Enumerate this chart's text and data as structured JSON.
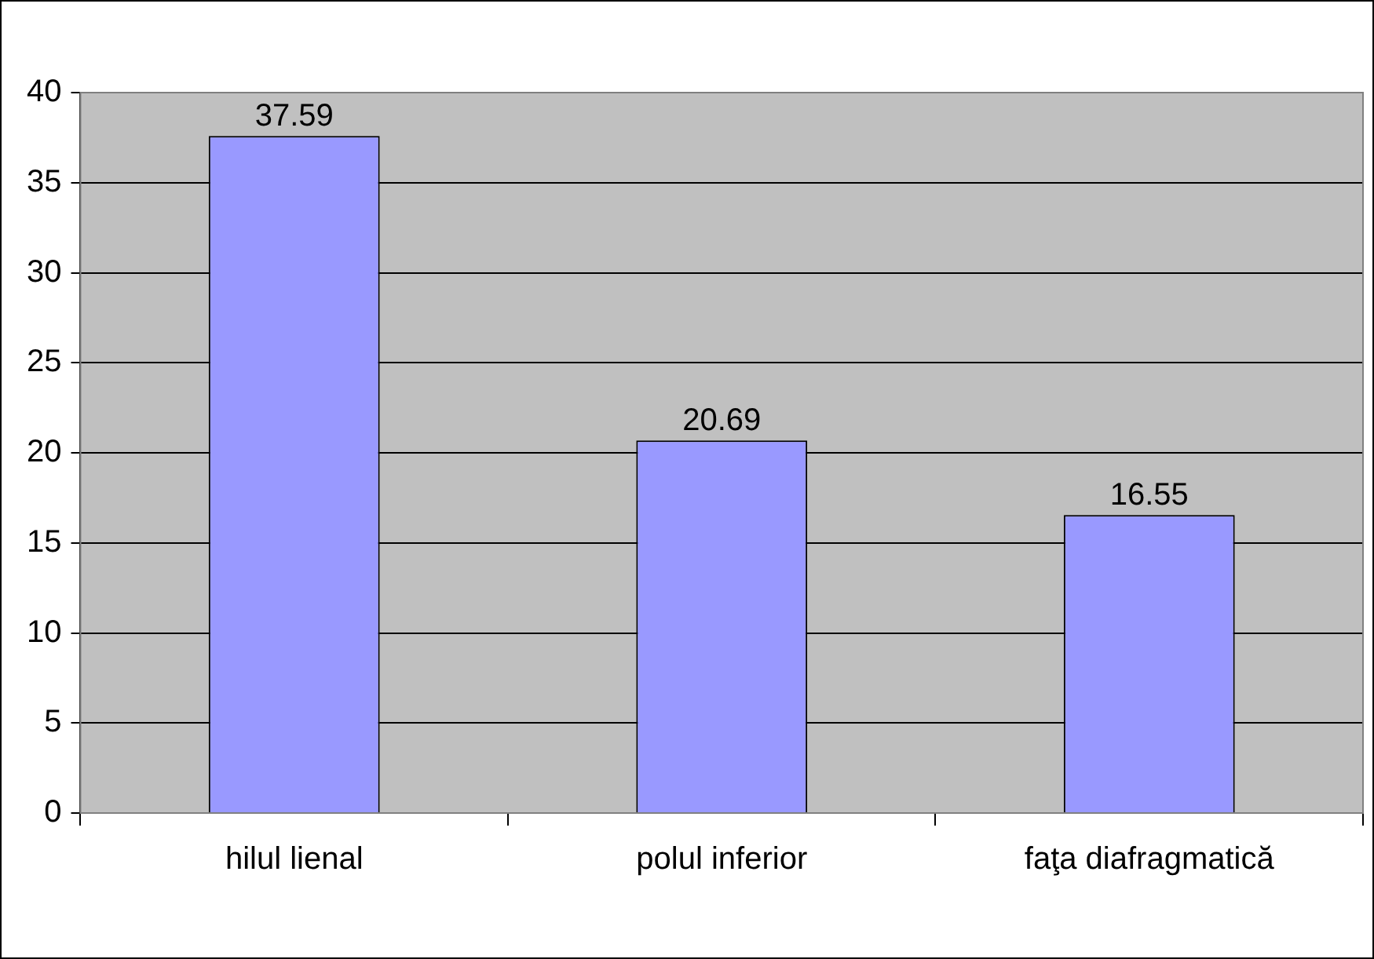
{
  "chart_data": {
    "type": "bar",
    "categories": [
      "hilul lienal",
      "polul inferior",
      "faţa diafragmatică"
    ],
    "values": [
      37.59,
      20.69,
      16.55
    ],
    "color": "#9999ff",
    "ylim": [
      0,
      40
    ],
    "yticks": [
      0,
      5,
      10,
      15,
      20,
      25,
      30,
      35,
      40
    ],
    "grid": "y",
    "legend": false,
    "data_labels": true
  }
}
